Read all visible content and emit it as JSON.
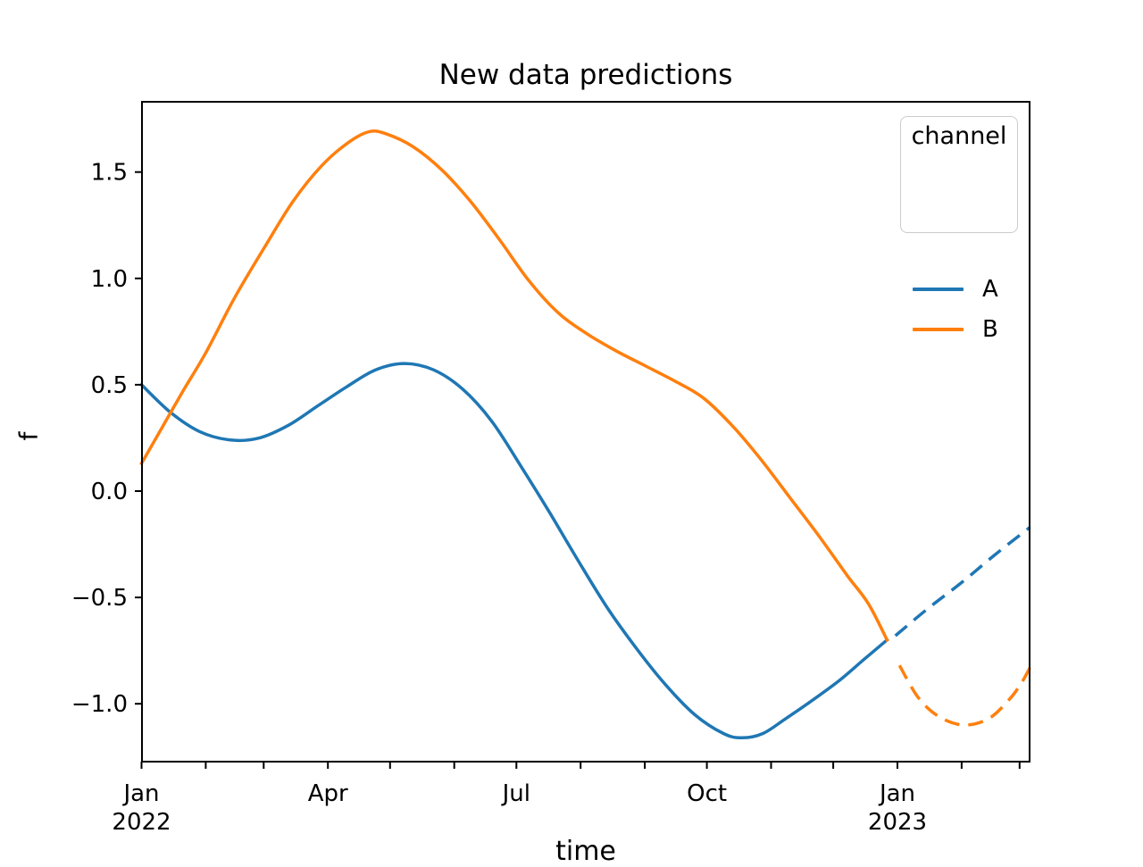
{
  "title": "New data predictions",
  "axes": {
    "x_label": "time",
    "y_label": "f",
    "y_ticks": [
      {
        "value": -1.0,
        "label": "−1.0"
      },
      {
        "value": -0.5,
        "label": "−0.5"
      },
      {
        "value": 0.0,
        "label": "0.0"
      },
      {
        "value": 0.5,
        "label": "0.5"
      },
      {
        "value": 1.0,
        "label": "1.0"
      },
      {
        "value": 1.5,
        "label": "1.5"
      }
    ],
    "x_ticks": [
      {
        "day": 0,
        "line1": "Jan",
        "line2": "2022"
      },
      {
        "day": 31
      },
      {
        "day": 59
      },
      {
        "day": 90,
        "line1": "Apr"
      },
      {
        "day": 120
      },
      {
        "day": 151
      },
      {
        "day": 181,
        "line1": "Jul"
      },
      {
        "day": 212
      },
      {
        "day": 243
      },
      {
        "day": 273,
        "line1": "Oct"
      },
      {
        "day": 304
      },
      {
        "day": 334
      },
      {
        "day": 365,
        "line1": "Jan",
        "line2": "2023"
      },
      {
        "day": 396
      },
      {
        "day": 424
      }
    ]
  },
  "legend": {
    "title": "channel",
    "entries": [
      {
        "label": "A",
        "color": "#1f77b4"
      },
      {
        "label": "B",
        "color": "#ff7f0e"
      }
    ]
  },
  "colors": {
    "series_a": "#1f77b4",
    "series_b": "#ff7f0e",
    "axis": "#000000",
    "legend_border": "#cccccc",
    "background": "#ffffff"
  },
  "chart_data": {
    "type": "line",
    "title": "New data predictions",
    "xlabel": "time",
    "ylabel": "f",
    "x_unit": "days since 2022-01-01",
    "x_range_days": [
      0,
      429
    ],
    "ylim": [
      -1.27,
      1.83
    ],
    "grid": false,
    "legend_position": "upper right",
    "series": [
      {
        "name": "A",
        "color": "#1f77b4",
        "observed_style": "solid",
        "predicted_style": "dashed",
        "observed": [
          [
            0,
            0.5
          ],
          [
            14,
            0.37
          ],
          [
            28,
            0.28
          ],
          [
            43,
            0.24
          ],
          [
            57,
            0.25
          ],
          [
            71,
            0.31
          ],
          [
            85,
            0.4
          ],
          [
            99,
            0.49
          ],
          [
            113,
            0.57
          ],
          [
            127,
            0.6
          ],
          [
            141,
            0.57
          ],
          [
            155,
            0.48
          ],
          [
            169,
            0.33
          ],
          [
            183,
            0.12
          ],
          [
            197,
            -0.1
          ],
          [
            211,
            -0.33
          ],
          [
            225,
            -0.55
          ],
          [
            239,
            -0.74
          ],
          [
            253,
            -0.91
          ],
          [
            267,
            -1.05
          ],
          [
            281,
            -1.14
          ],
          [
            290,
            -1.16
          ],
          [
            300,
            -1.14
          ],
          [
            311,
            -1.07
          ],
          [
            323,
            -0.99
          ],
          [
            337,
            -0.89
          ],
          [
            349,
            -0.79
          ],
          [
            360,
            -0.7
          ]
        ],
        "predicted": [
          [
            364,
            -0.68
          ],
          [
            380,
            -0.55
          ],
          [
            396,
            -0.43
          ],
          [
            412,
            -0.3
          ],
          [
            429,
            -0.17
          ]
        ]
      },
      {
        "name": "B",
        "color": "#ff7f0e",
        "observed_style": "solid",
        "predicted_style": "dashed",
        "observed": [
          [
            0,
            0.13
          ],
          [
            10,
            0.3
          ],
          [
            20,
            0.47
          ],
          [
            31,
            0.65
          ],
          [
            45,
            0.91
          ],
          [
            59,
            1.14
          ],
          [
            73,
            1.36
          ],
          [
            87,
            1.53
          ],
          [
            100,
            1.64
          ],
          [
            110,
            1.69
          ],
          [
            118,
            1.68
          ],
          [
            131,
            1.62
          ],
          [
            145,
            1.51
          ],
          [
            159,
            1.36
          ],
          [
            173,
            1.18
          ],
          [
            187,
            0.99
          ],
          [
            201,
            0.84
          ],
          [
            215,
            0.74
          ],
          [
            229,
            0.66
          ],
          [
            243,
            0.59
          ],
          [
            257,
            0.52
          ],
          [
            271,
            0.44
          ],
          [
            285,
            0.31
          ],
          [
            299,
            0.15
          ],
          [
            313,
            -0.03
          ],
          [
            327,
            -0.21
          ],
          [
            341,
            -0.4
          ],
          [
            351,
            -0.53
          ],
          [
            360,
            -0.7
          ]
        ],
        "predicted": [
          [
            366,
            -0.82
          ],
          [
            375,
            -0.97
          ],
          [
            385,
            -1.06
          ],
          [
            397,
            -1.1
          ],
          [
            409,
            -1.07
          ],
          [
            419,
            -0.98
          ],
          [
            425,
            -0.9
          ],
          [
            429,
            -0.83
          ]
        ]
      }
    ]
  }
}
